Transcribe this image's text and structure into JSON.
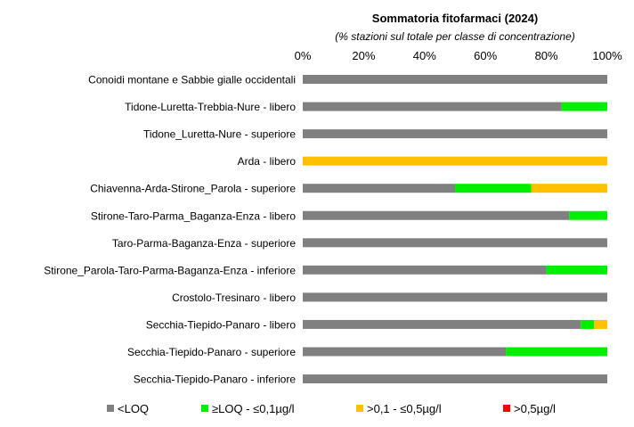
{
  "chart_data": {
    "type": "bar",
    "orientation": "horizontal",
    "stacked": true,
    "title": "Sommatoria fitofarmaci (2024)",
    "subtitle": "(% stazioni sul totale per classe di concentrazione)",
    "xlim": [
      0,
      100
    ],
    "x_ticks": [
      "0%",
      "20%",
      "40%",
      "60%",
      "80%",
      "100%"
    ],
    "x_axis_position": "top",
    "grid": false,
    "legend_position": "bottom",
    "categories": [
      "Conoidi montane e Sabbie gialle occidentali",
      "Tidone-Luretta-Trebbia-Nure - libero",
      "Tidone_Luretta-Nure - superiore",
      "Arda - libero",
      "Chiavenna-Arda-Stirone_Parola - superiore",
      "Stirone-Taro-Parma_Baganza-Enza - libero",
      "Taro-Parma-Baganza-Enza - superiore",
      "Stirone_Parola-Taro-Parma-Baganza-Enza - inferiore",
      "Crostolo-Tresinaro - libero",
      "Secchia-Tiepido-Panaro - libero",
      "Secchia-Tiepido-Panaro - superiore",
      "Secchia-Tiepido-Panaro - inferiore"
    ],
    "series": [
      {
        "name": "<LOQ",
        "color": "#808080",
        "values": [
          100,
          85,
          100,
          0,
          50,
          87.5,
          100,
          80,
          100,
          91.3,
          66.7,
          100
        ]
      },
      {
        "name": "≥LOQ - ≤0,1µg/l",
        "color": "#00ee00",
        "values": [
          0,
          15,
          0,
          0,
          25,
          12.5,
          0,
          20,
          0,
          4.4,
          33.3,
          0
        ]
      },
      {
        "name": ">0,1 - ≤0,5µg/l",
        "color": "#ffc000",
        "values": [
          0,
          0,
          0,
          100,
          25,
          0,
          0,
          0,
          0,
          4.3,
          0,
          0
        ]
      },
      {
        "name": ">0,5µg/l",
        "color": "#ff0000",
        "values": [
          0,
          0,
          0,
          0,
          0,
          0,
          0,
          0,
          0,
          0,
          0,
          0
        ]
      }
    ]
  }
}
